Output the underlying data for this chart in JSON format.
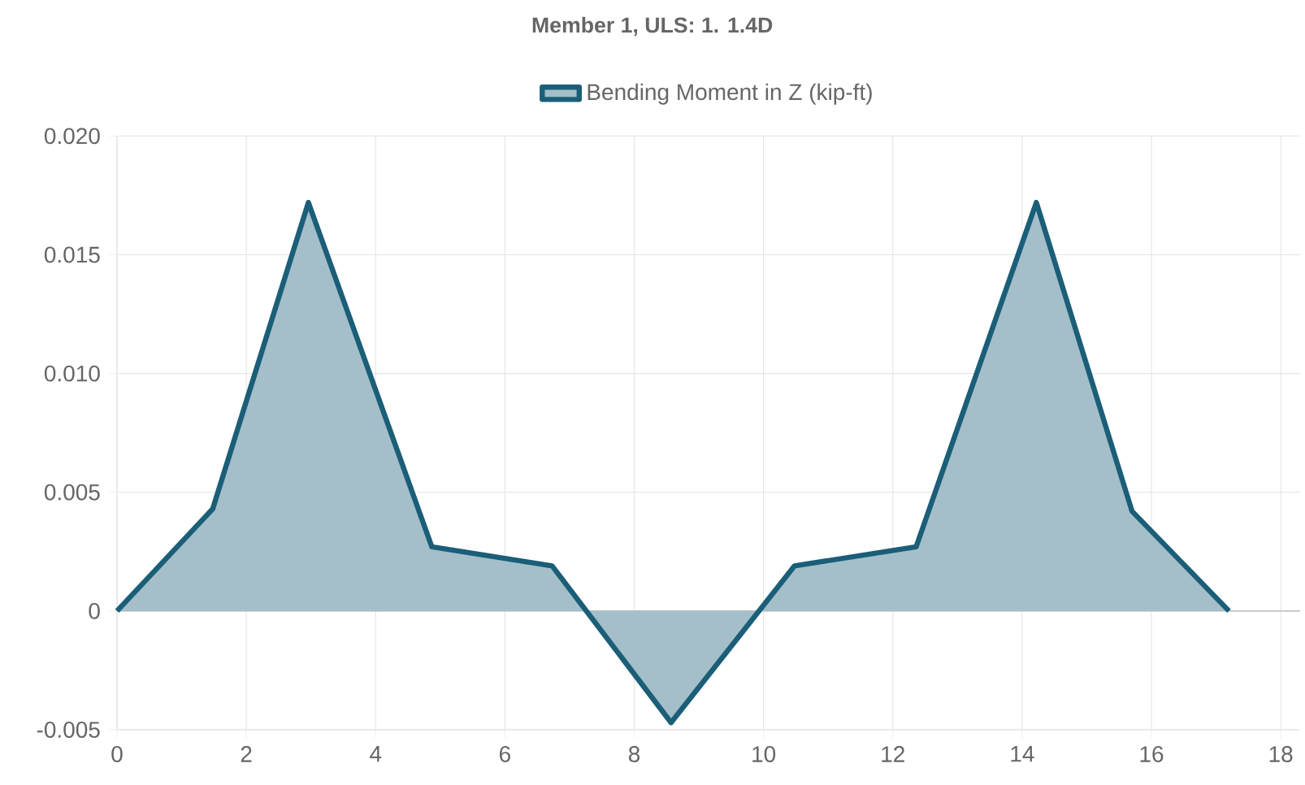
{
  "chart_data": {
    "type": "area",
    "title": "Member 1, ULS: 1. 1.4D",
    "x": [
      0,
      1.48,
      2.96,
      4.87,
      6.73,
      8.57,
      10.48,
      12.36,
      14.22,
      15.7,
      17.2
    ],
    "series": [
      {
        "name": "Bending Moment in Z (kip-ft)",
        "color": "#1b5e78",
        "values": [
          0,
          0.0043,
          0.0172,
          0.0027,
          0.0019,
          -0.0047,
          0.0019,
          0.0027,
          0.0172,
          0.0042,
          0
        ]
      }
    ],
    "xlim": [
      0,
      18.3
    ],
    "ylim": [
      -0.005,
      0.02
    ],
    "xticks": [
      0,
      2,
      4,
      6,
      8,
      10,
      12,
      14,
      16,
      18
    ],
    "yticks": [
      -0.005,
      0,
      0.005,
      {
        "value": 0.01,
        "label": "0.010"
      },
      0.015,
      {
        "value": 0.02,
        "label": "0.020"
      }
    ],
    "grid": true,
    "legend": "top",
    "marker": "none",
    "line_style": "solid"
  }
}
